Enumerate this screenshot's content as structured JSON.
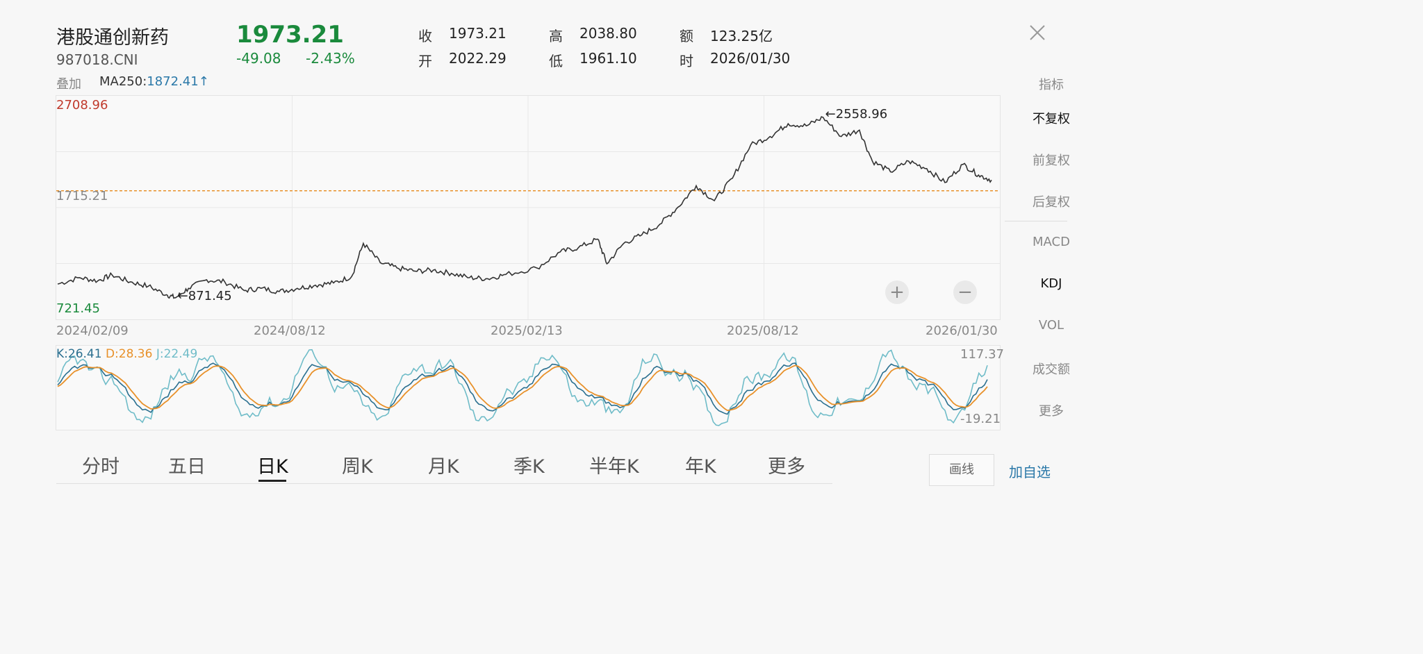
{
  "header": {
    "name": "港股通创新药",
    "code": "987018.CNI",
    "price": "1973.21",
    "change": "-49.08",
    "change_pct": "-2.43%",
    "stats": {
      "close_label": "收",
      "close": "1973.21",
      "high_label": "高",
      "high": "2038.80",
      "amount_label": "额",
      "amount": "123.25亿",
      "open_label": "开",
      "open": "2022.29",
      "low_label": "低",
      "low": "1961.10",
      "time_label": "时",
      "time": "2026/01/30"
    }
  },
  "overlay": {
    "label": "叠加",
    "ma_label": "MA250:",
    "ma_value": "1872.41↑"
  },
  "sidebar": {
    "items": [
      {
        "label": "指标"
      },
      {
        "label": "不复权"
      },
      {
        "label": "前复权"
      },
      {
        "label": "后复权"
      },
      {
        "label": "MACD"
      },
      {
        "label": "KDJ"
      },
      {
        "label": "VOL"
      },
      {
        "label": "成交额"
      },
      {
        "label": "更多"
      }
    ]
  },
  "tabs": [
    {
      "label": "分时"
    },
    {
      "label": "五日"
    },
    {
      "label": "日K"
    },
    {
      "label": "周K"
    },
    {
      "label": "月K"
    },
    {
      "label": "季K"
    },
    {
      "label": "半年K"
    },
    {
      "label": "年K"
    },
    {
      "label": "更多"
    }
  ],
  "buttons": {
    "draw": "画线",
    "add_fav": "加自选",
    "zoom_in": "+",
    "zoom_out": "−"
  },
  "colors": {
    "up": "#c0392b",
    "down": "#1a8a3c",
    "k": "#2a6f8f",
    "d": "#e8912a",
    "j": "#6fbcc8",
    "ma": "#e8912a"
  },
  "chart_data": {
    "type": "line",
    "y_max_label": "2708.96",
    "y_mid_label": "1715.21",
    "y_min_label": "721.45",
    "ylim": [
      721.45,
      2708.96
    ],
    "x_labels": [
      "2024/02/09",
      "2024/08/12",
      "2025/02/13",
      "2025/08/12",
      "2026/01/30"
    ],
    "ma_line_value": 1872.41,
    "max_annotation": "←2558.96",
    "min_annotation": "←871.45",
    "price_series": [
      {
        "x": "2024-02-09",
        "y": 1000
      },
      {
        "x": "2024-02-26",
        "y": 1060
      },
      {
        "x": "2024-03-11",
        "y": 1030
      },
      {
        "x": "2024-03-22",
        "y": 1085
      },
      {
        "x": "2024-04-05",
        "y": 1020
      },
      {
        "x": "2024-04-19",
        "y": 980
      },
      {
        "x": "2024-05-03",
        "y": 900
      },
      {
        "x": "2024-05-10",
        "y": 871.45
      },
      {
        "x": "2024-05-20",
        "y": 960
      },
      {
        "x": "2024-06-03",
        "y": 1040
      },
      {
        "x": "2024-06-17",
        "y": 1020
      },
      {
        "x": "2024-07-02",
        "y": 940
      },
      {
        "x": "2024-07-15",
        "y": 960
      },
      {
        "x": "2024-07-29",
        "y": 930
      },
      {
        "x": "2024-08-12",
        "y": 960
      },
      {
        "x": "2024-08-26",
        "y": 990
      },
      {
        "x": "2024-09-09",
        "y": 1010
      },
      {
        "x": "2024-09-23",
        "y": 1070
      },
      {
        "x": "2024-10-02",
        "y": 1380
      },
      {
        "x": "2024-10-15",
        "y": 1200
      },
      {
        "x": "2024-10-28",
        "y": 1150
      },
      {
        "x": "2024-11-11",
        "y": 1120
      },
      {
        "x": "2024-11-25",
        "y": 1130
      },
      {
        "x": "2024-12-09",
        "y": 1100
      },
      {
        "x": "2024-12-23",
        "y": 1060
      },
      {
        "x": "2025-01-06",
        "y": 1050
      },
      {
        "x": "2025-01-20",
        "y": 1090
      },
      {
        "x": "2025-02-13",
        "y": 1150
      },
      {
        "x": "2025-03-03",
        "y": 1300
      },
      {
        "x": "2025-03-17",
        "y": 1340
      },
      {
        "x": "2025-04-01",
        "y": 1420
      },
      {
        "x": "2025-04-08",
        "y": 1190
      },
      {
        "x": "2025-04-21",
        "y": 1380
      },
      {
        "x": "2025-05-05",
        "y": 1460
      },
      {
        "x": "2025-05-19",
        "y": 1560
      },
      {
        "x": "2025-06-02",
        "y": 1720
      },
      {
        "x": "2025-06-16",
        "y": 1920
      },
      {
        "x": "2025-06-30",
        "y": 1780
      },
      {
        "x": "2025-07-14",
        "y": 1990
      },
      {
        "x": "2025-07-28",
        "y": 2300
      },
      {
        "x": "2025-08-12",
        "y": 2380
      },
      {
        "x": "2025-08-26",
        "y": 2500
      },
      {
        "x": "2025-09-09",
        "y": 2480
      },
      {
        "x": "2025-09-22",
        "y": 2558.96
      },
      {
        "x": "2025-10-06",
        "y": 2380
      },
      {
        "x": "2025-10-20",
        "y": 2440
      },
      {
        "x": "2025-10-30",
        "y": 2150
      },
      {
        "x": "2025-11-13",
        "y": 2050
      },
      {
        "x": "2025-11-27",
        "y": 2150
      },
      {
        "x": "2025-12-11",
        "y": 2080
      },
      {
        "x": "2025-12-25",
        "y": 1950
      },
      {
        "x": "2026-01-08",
        "y": 2120
      },
      {
        "x": "2026-01-20",
        "y": 2020
      },
      {
        "x": "2026-01-30",
        "y": 1973.21
      }
    ]
  },
  "kdj": {
    "k_label": "K:26.41",
    "d_label": "D:28.36",
    "j_label": "J:22.49",
    "max_label": "117.37",
    "min_label": "-19.21",
    "ylim": [
      -19.21,
      117.37
    ]
  }
}
